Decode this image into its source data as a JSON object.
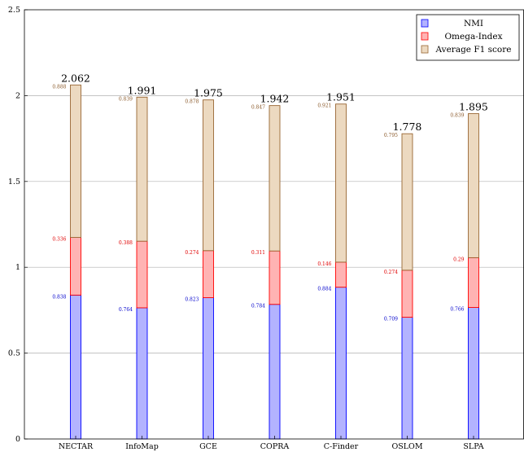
{
  "chart_data": {
    "type": "bar",
    "stacked": true,
    "categories": [
      "NECTAR",
      "InfoMap",
      "GCE",
      "COPRA",
      "C-Finder",
      "OSLOM",
      "SLPA"
    ],
    "series": [
      {
        "name": "NMI",
        "values": [
          0.838,
          0.764,
          0.823,
          0.784,
          0.884,
          0.709,
          0.766
        ],
        "labels": [
          "0.838",
          "0.764",
          "0.823",
          "0.784",
          "0.884",
          "0.709",
          "0.766"
        ],
        "fill": "#b3b3ff",
        "stroke": "#0000ff",
        "label_color": "#0000cc"
      },
      {
        "name": "Omega-Index",
        "values": [
          0.336,
          0.388,
          0.274,
          0.311,
          0.146,
          0.274,
          0.29
        ],
        "labels": [
          "0.336",
          "0.388",
          "0.274",
          "0.311",
          "0.146",
          "0.274",
          "0.29"
        ],
        "fill": "#ffb3b3",
        "stroke": "#ff0000",
        "label_color": "#e00000"
      },
      {
        "name": "Average F1 score",
        "values": [
          0.888,
          0.839,
          0.878,
          0.847,
          0.921,
          0.795,
          0.839
        ],
        "labels": [
          "0.888",
          "0.839",
          "0.878",
          "0.847",
          "0.921",
          "0.795",
          "0.839"
        ],
        "fill": "#ecd9c0",
        "stroke": "#996633",
        "label_color": "#8b5a2b"
      }
    ],
    "totals": [
      "2.062",
      "1.991",
      "1.975",
      "1.942",
      "1.951",
      "1.778",
      "1.895"
    ],
    "y_ticks": [
      0,
      0.5,
      1,
      1.5,
      2,
      2.5
    ],
    "y_tick_labels": [
      "0",
      "0.5",
      "1",
      "1.5",
      "2",
      "2.5"
    ],
    "ylim": [
      0,
      2.5
    ],
    "grid": true,
    "legend_position": "top-right",
    "title": "",
    "xlabel": "",
    "ylabel": ""
  }
}
